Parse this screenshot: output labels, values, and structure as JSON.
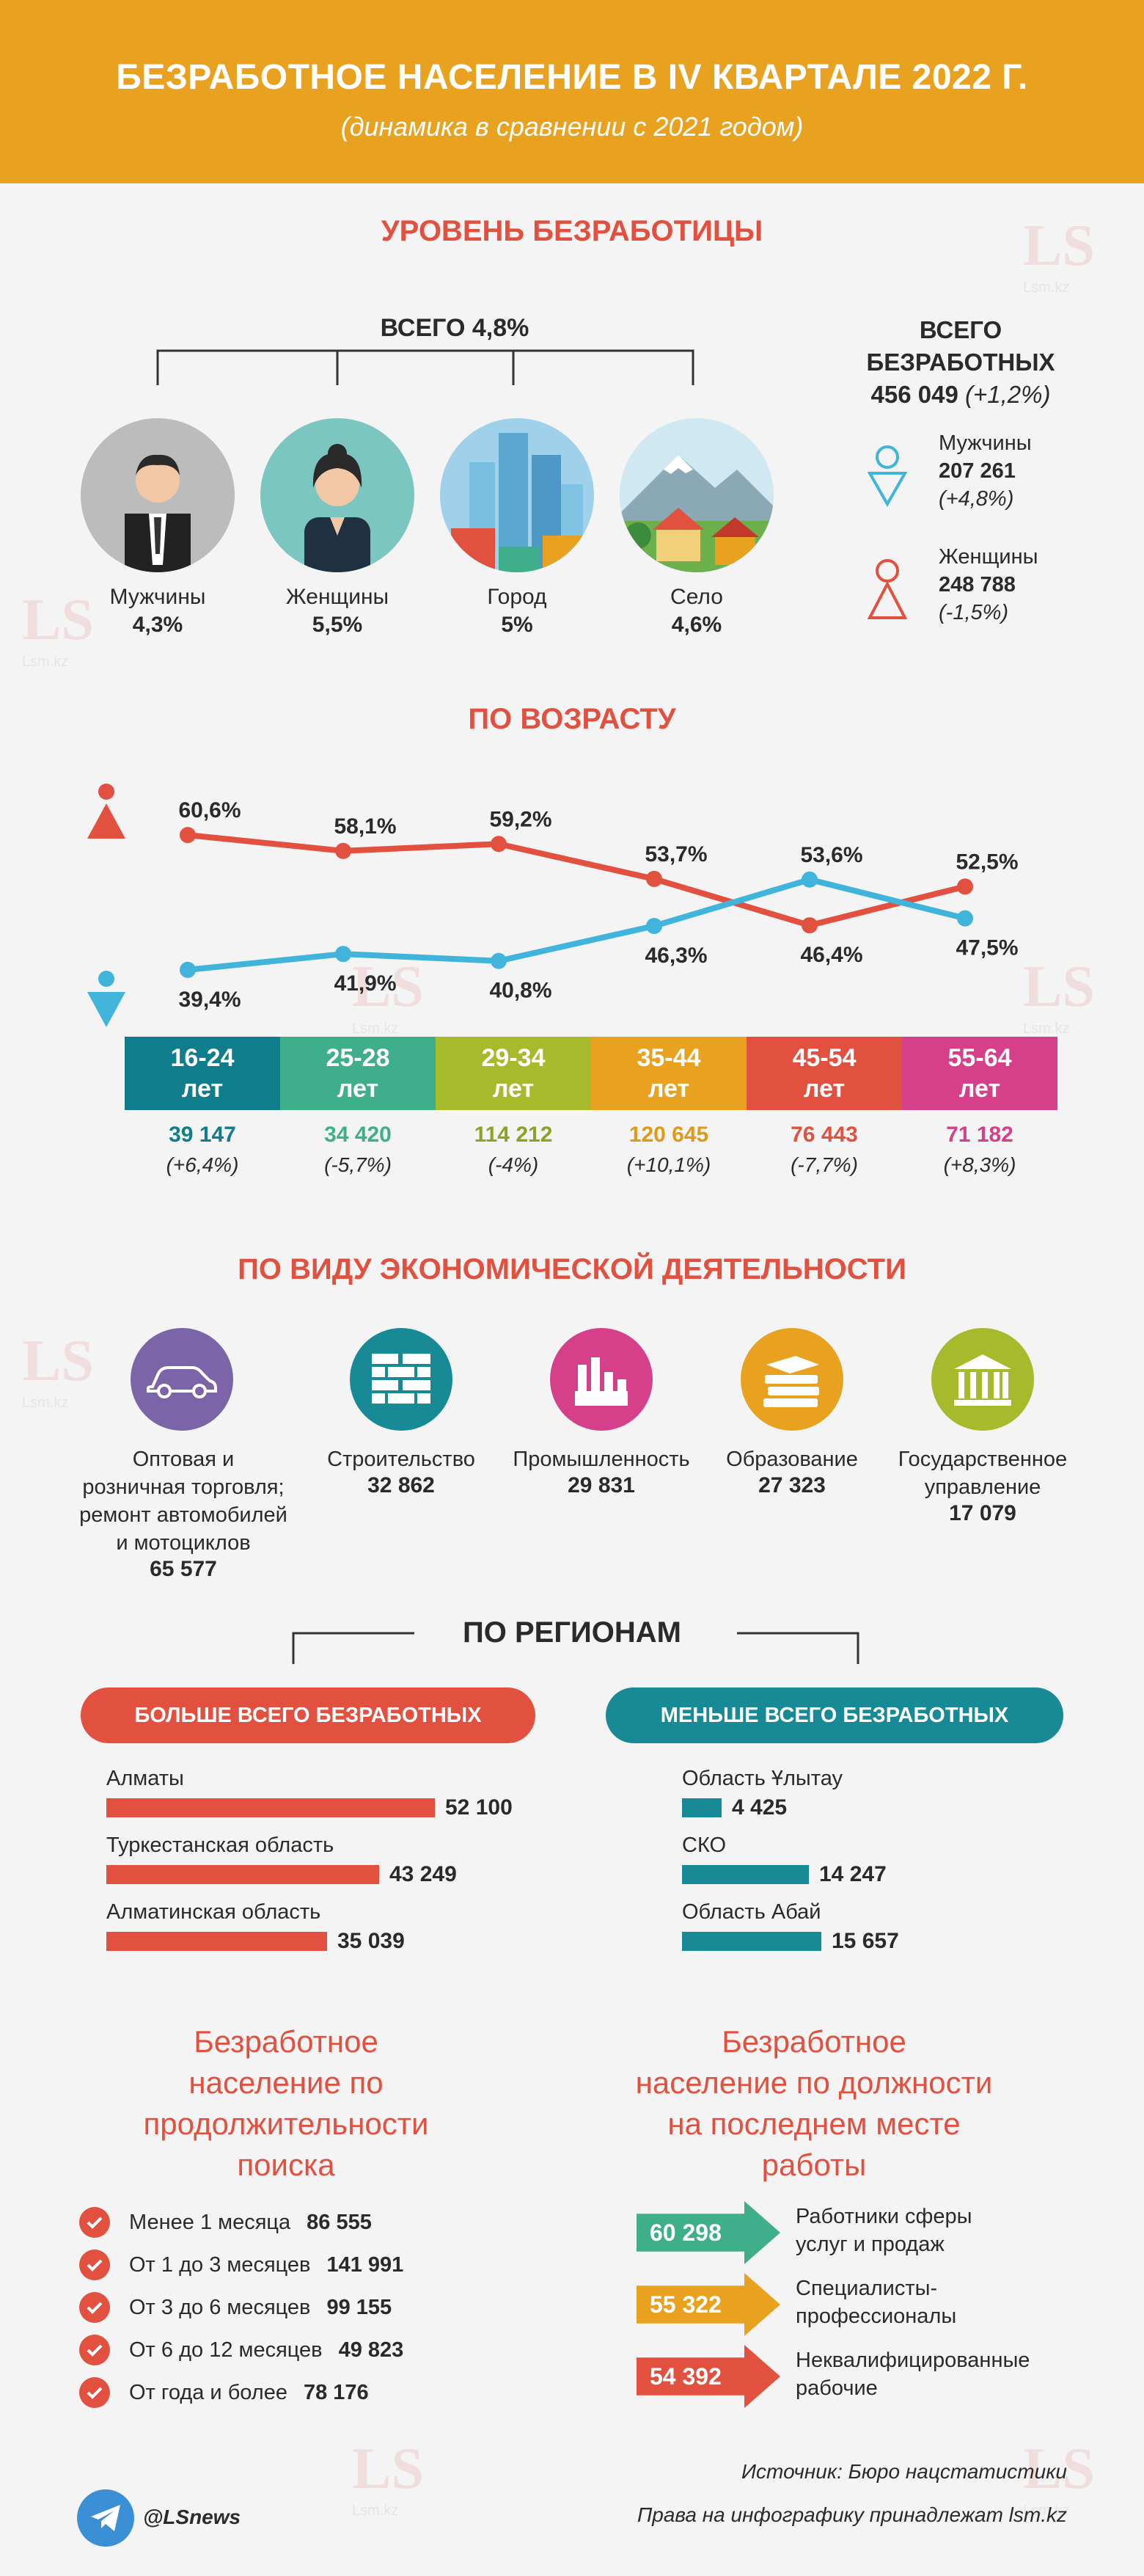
{
  "header": {
    "title": "БЕЗРАБОТНОЕ НАСЕЛЕНИЕ В IV КВАРТАЛЕ 2022 Г.",
    "subtitle": "(динамика в сравнении с 2021 годом)"
  },
  "level": {
    "title": "УРОВЕНЬ БЕЗРАБОТИЦЫ",
    "total_label": "ВСЕГО 4,8%",
    "groups": [
      {
        "name": "Мужчины",
        "value": "4,3%"
      },
      {
        "name": "Женщины",
        "value": "5,5%"
      },
      {
        "name": "Город",
        "value": "5%"
      },
      {
        "name": "Село",
        "value": "4,6%"
      }
    ],
    "total_unemployed": {
      "label_line1": "ВСЕГО",
      "label_line2": "БЕЗРАБОТНЫХ",
      "value": "456 049",
      "change": "(+1,2%)"
    },
    "men": {
      "label": "Мужчины",
      "value": "207 261",
      "change": "(+4,8%)"
    },
    "women": {
      "label": "Женщины",
      "value": "248 788",
      "change": "(-1,5%)"
    }
  },
  "age": {
    "title": "ПО ВОЗРАСТУ",
    "chart_data": {
      "type": "line",
      "categories": [
        "16-24 лет",
        "25-28 лет",
        "29-34 лет",
        "35-44 лет",
        "45-54 лет",
        "55-64 лет"
      ],
      "series": [
        {
          "name": "Женщины",
          "color": "#e2503f",
          "values": [
            60.6,
            58.1,
            59.2,
            53.7,
            46.4,
            52.5
          ],
          "labels": [
            "60,6%",
            "58,1%",
            "59,2%",
            "53,7%",
            "46,4%",
            "52,5%"
          ]
        },
        {
          "name": "Мужчины",
          "color": "#40b4da",
          "values": [
            39.4,
            41.9,
            40.8,
            46.3,
            53.6,
            47.5
          ],
          "labels": [
            "39,4%",
            "41,9%",
            "40,8%",
            "46,3%",
            "53,6%",
            "47,5%"
          ]
        }
      ]
    },
    "groups": [
      {
        "line1": "16-24",
        "line2": "лет",
        "color": "#0f7d8c",
        "num": "39 147",
        "change": "(+6,4%)"
      },
      {
        "line1": "25-28",
        "line2": "лет",
        "color": "#3fae8a",
        "num": "34 420",
        "change": "(-5,7%)"
      },
      {
        "line1": "29-34",
        "line2": "лет",
        "color": "#a6ba2c",
        "num": "114 212",
        "change": "(-4%)"
      },
      {
        "line1": "35-44",
        "line2": "лет",
        "color": "#e8a21f",
        "num": "120 645",
        "change": "(+10,1%)"
      },
      {
        "line1": "45-54",
        "line2": "лет",
        "color": "#e2503f",
        "num": "76 443",
        "change": "(-7,7%)"
      },
      {
        "line1": "55-64",
        "line2": "лет",
        "color": "#d63f8a",
        "num": "71 182",
        "change": "(+8,3%)"
      }
    ]
  },
  "industry": {
    "title": "ПО ВИДУ ЭКОНОМИЧЕСКОЙ ДЕЯТЕЛЬНОСТИ",
    "items": [
      {
        "icon": "car-icon",
        "color": "#7b64a8",
        "name_lines": [
          "Оптовая и",
          "розничная торговля;",
          "ремонт автомобилей",
          "и мотоциклов"
        ],
        "value": "65 577"
      },
      {
        "icon": "bricks-icon",
        "color": "#178a96",
        "name_lines": [
          "Строительство"
        ],
        "value": "32 862"
      },
      {
        "icon": "factory-icon",
        "color": "#d63f8a",
        "name_lines": [
          "Промышленность"
        ],
        "value": "29 831"
      },
      {
        "icon": "books-icon",
        "color": "#e8a21f",
        "name_lines": [
          "Образование"
        ],
        "value": "27 323"
      },
      {
        "icon": "government-building-icon",
        "color": "#a6ba2c",
        "name_lines": [
          "Государственное",
          "управление"
        ],
        "value": "17 079"
      }
    ]
  },
  "regions": {
    "title": "ПО РЕГИОНАМ",
    "most_label": "БОЛЬШЕ ВСЕГО БЕЗРАБОТНЫХ",
    "least_label": "МЕНЬШЕ ВСЕГО БЕЗРАБОТНЫХ",
    "most_color": "#e2503f",
    "least_color": "#178a96",
    "most": [
      {
        "name": "Алматы",
        "num": 52100,
        "value": "52 100"
      },
      {
        "name": "Туркестанская область",
        "num": 43249,
        "value": "43 249"
      },
      {
        "name": "Алматинская область",
        "num": 35039,
        "value": "35 039"
      }
    ],
    "least": [
      {
        "name": "Область Ұлытау",
        "num": 4425,
        "value": "4 425"
      },
      {
        "name": "СКО",
        "num": 14247,
        "value": "14 247"
      },
      {
        "name": "Область Абай",
        "num": 15657,
        "value": "15 657"
      }
    ]
  },
  "duration": {
    "title_lines": [
      "Безработное",
      "население по",
      "продолжительности",
      "поиска"
    ],
    "items": [
      {
        "label": "Менее 1 месяца",
        "value": "86 555"
      },
      {
        "label": "От 1 до 3 месяцев",
        "value": "141 991"
      },
      {
        "label": "От 3 до 6 месяцев",
        "value": "99 155"
      },
      {
        "label": "От 6 до 12 месяцев",
        "value": "49 823"
      },
      {
        "label": "От года и более",
        "value": "78 176"
      }
    ]
  },
  "position": {
    "title_lines": [
      "Безработное",
      "население по должности",
      "на последнем месте",
      "работы"
    ],
    "items": [
      {
        "value": "60 298",
        "color": "#3fae8a",
        "label_lines": [
          "Работники сферы",
          "услуг и продаж"
        ]
      },
      {
        "value": "55 322",
        "color": "#e8a21f",
        "label_lines": [
          "Специалисты-",
          "профессионалы"
        ]
      },
      {
        "value": "54 392",
        "color": "#e2503f",
        "label_lines": [
          "Неквалифицированные",
          "рабочие"
        ]
      }
    ]
  },
  "footer": {
    "source": "Источник: Бюро нацстатистики",
    "rights": "Права на инфографику принадлежат lsm.kz",
    "handle": "@LSnews"
  },
  "watermark": {
    "logo": "LS",
    "site": "Lsm.kz"
  }
}
